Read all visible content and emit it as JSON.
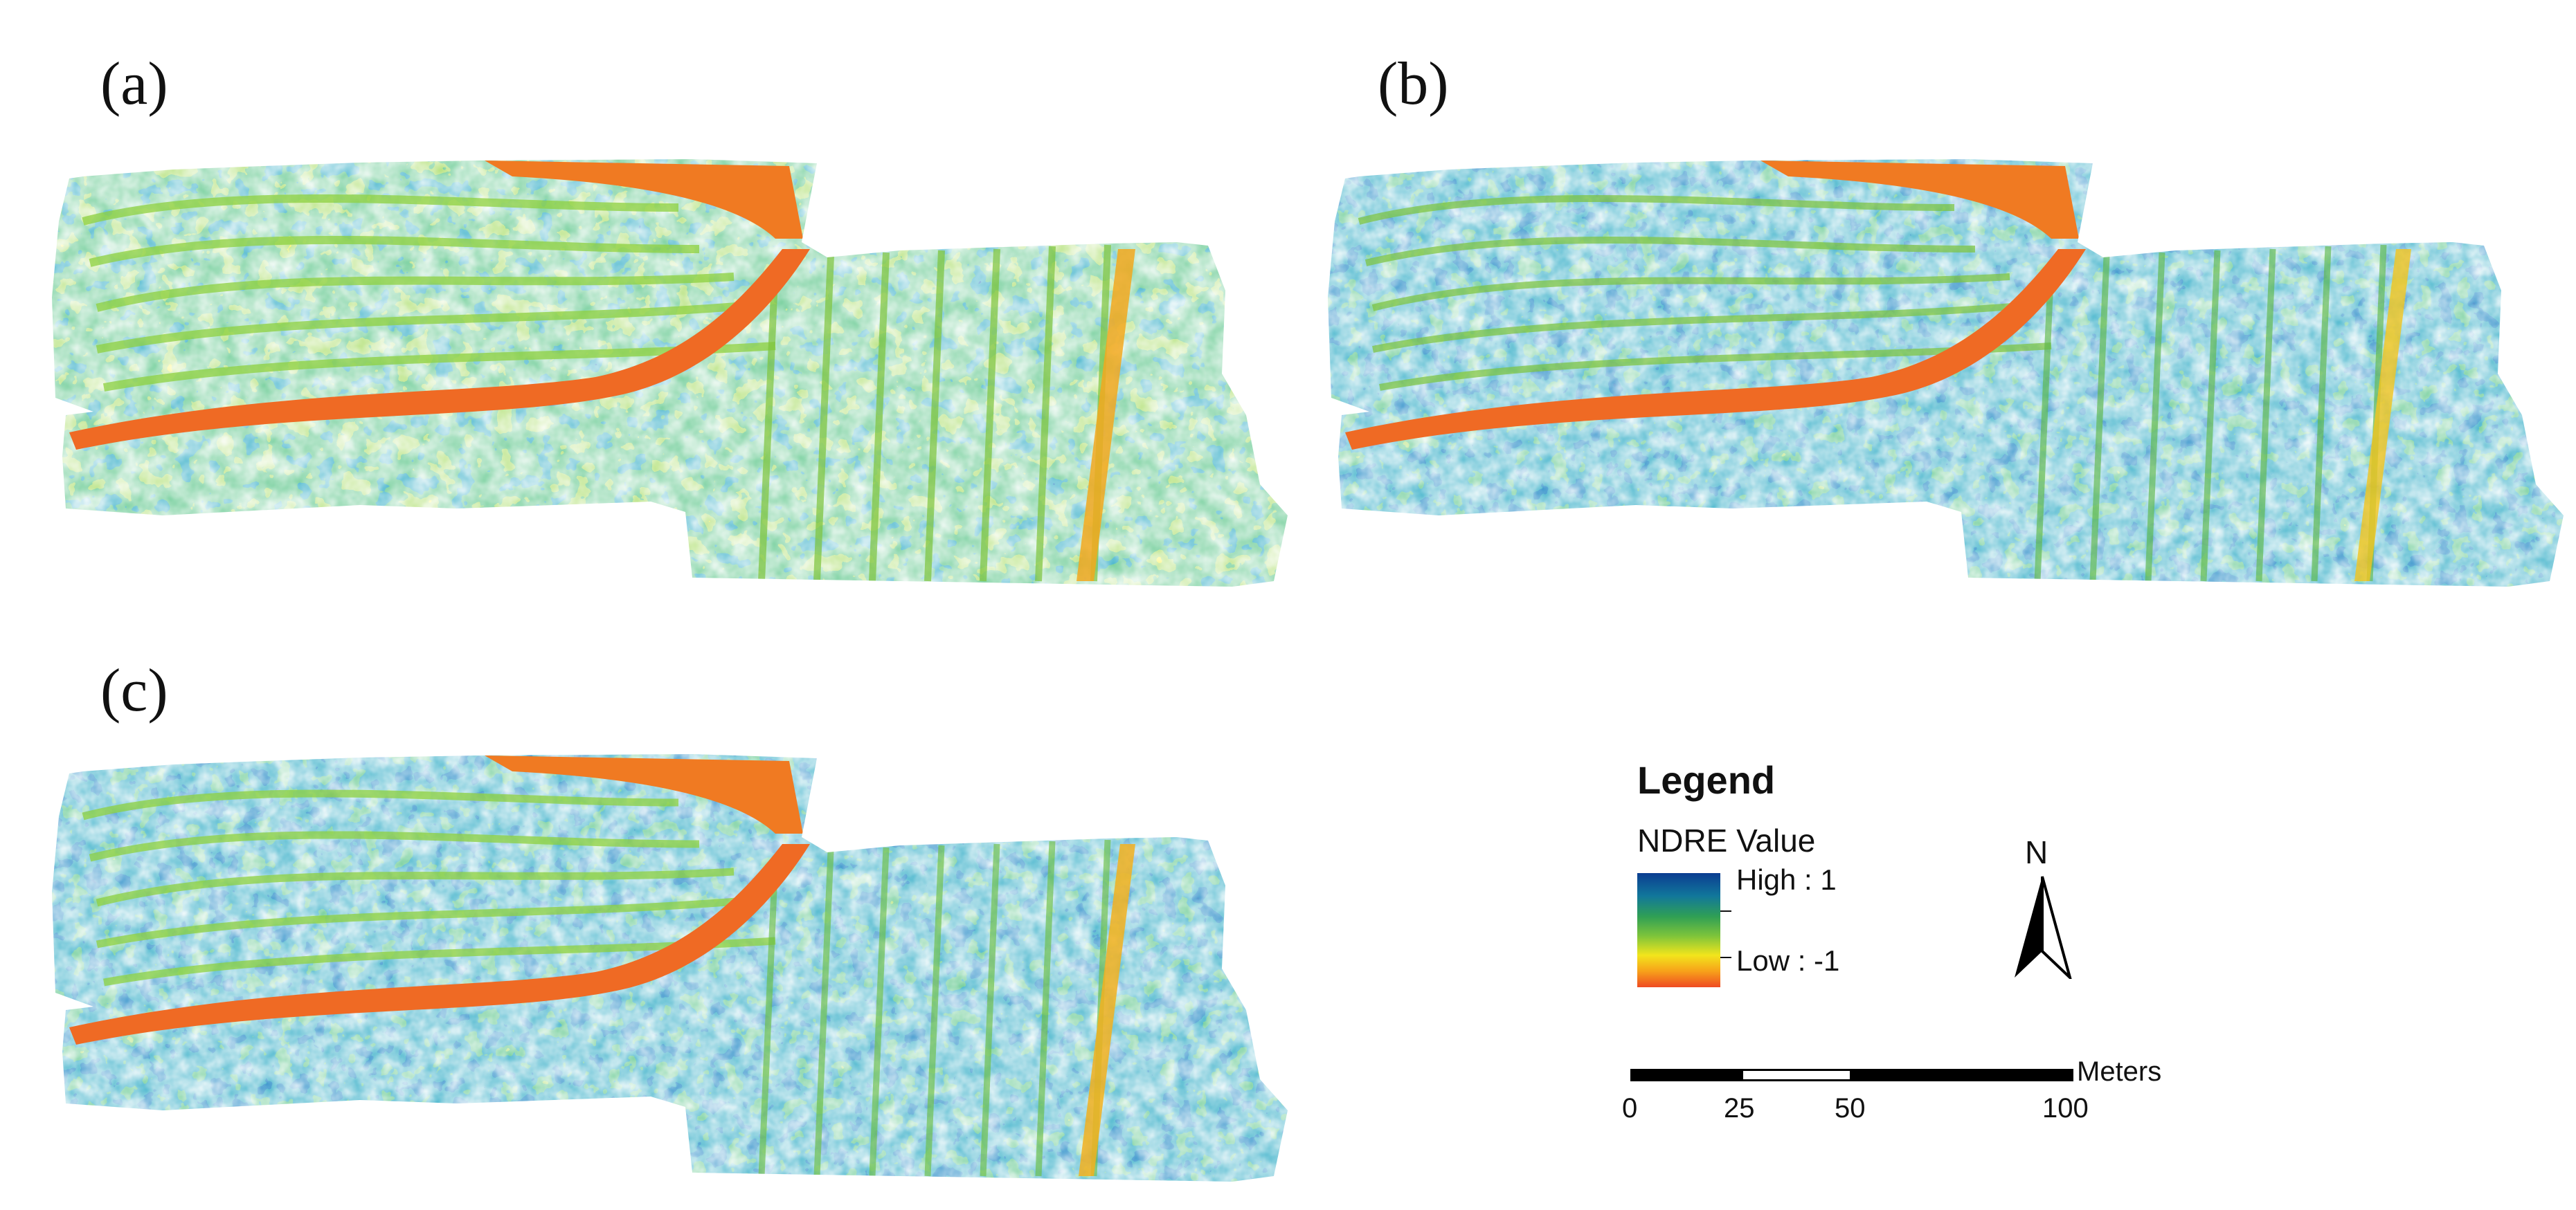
{
  "panels": [
    {
      "label": "(a)"
    },
    {
      "label": "(b)"
    },
    {
      "label": "(c)"
    }
  ],
  "legend": {
    "title": "Legend",
    "subtitle": "NDRE Value",
    "high_label": "High : 1",
    "low_label": "Low : -1",
    "colors": [
      "#0b3d91",
      "#11779b",
      "#2f9f55",
      "#7dc43b",
      "#f2e51c",
      "#f7a11a",
      "#ef4a22"
    ]
  },
  "north_arrow": {
    "label": "N",
    "icon": "north-arrow-icon"
  },
  "scale_bar": {
    "unit": "Meters",
    "ticks": [
      "0",
      "25",
      "50",
      "100"
    ]
  }
}
